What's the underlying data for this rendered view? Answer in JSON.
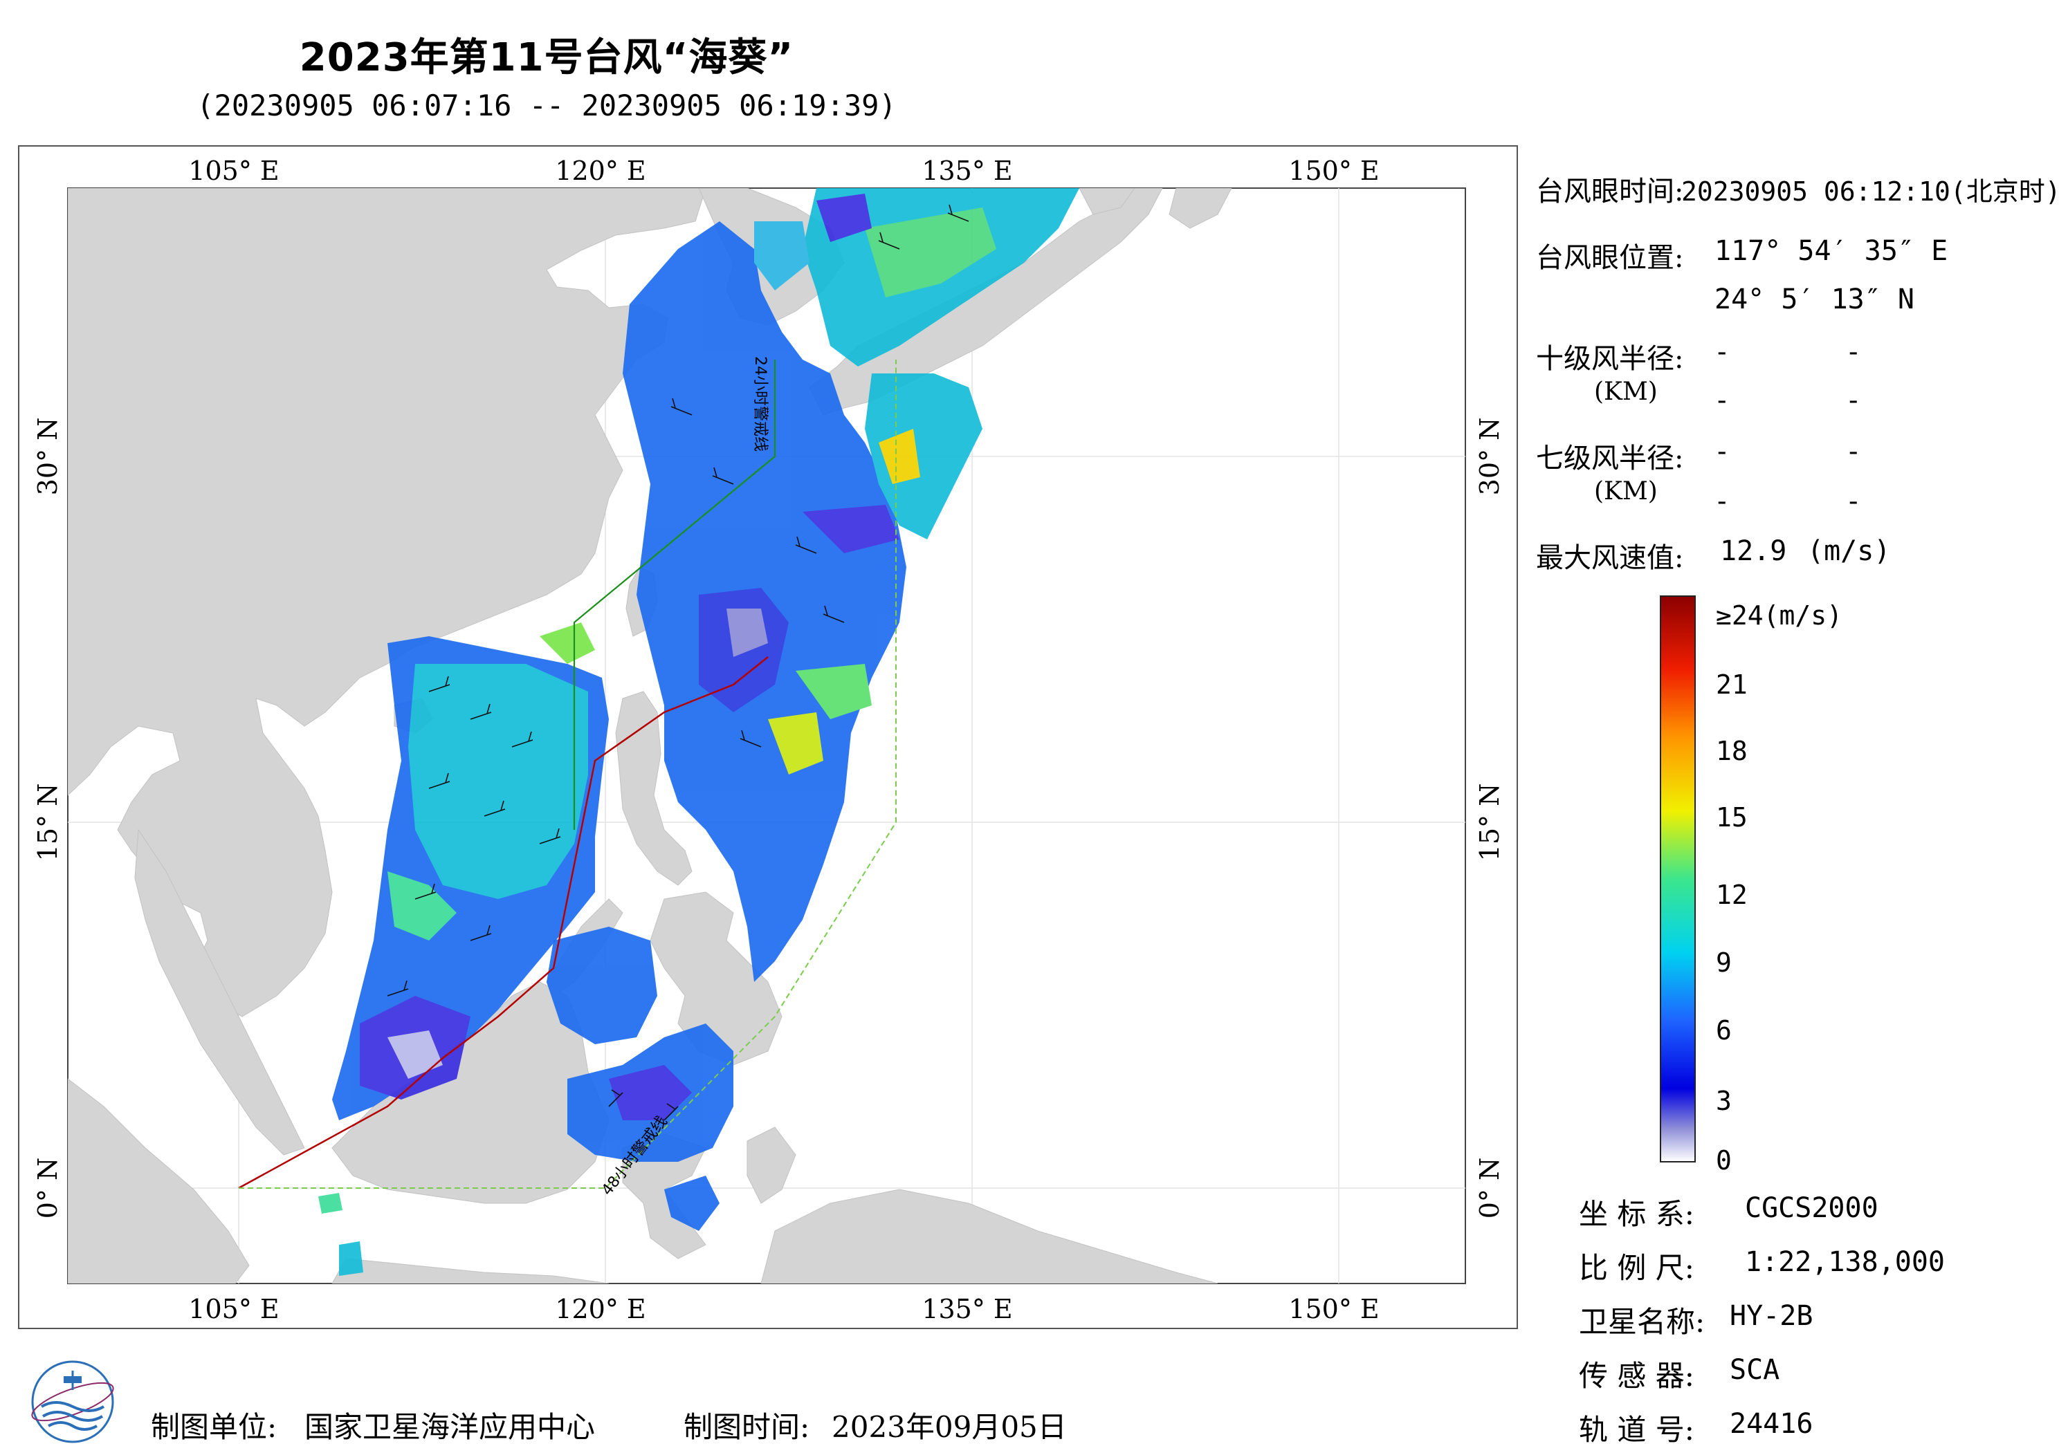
{
  "title": "2023年第11号台风“海葵”",
  "subtitle": "(20230905 06:07:16 -- 20230905 06:19:39)",
  "map": {
    "lon_range": [
      97.7,
      157.0
    ],
    "lat_range": [
      -4.0,
      41.0
    ],
    "lon_ticks": [
      "105° E",
      "120° E",
      "135° E",
      "150° E"
    ],
    "lat_ticks": [
      "0° N",
      "15° N",
      "30° N"
    ],
    "line_label_24h": "24小时警戒线",
    "line_label_48h": "48小时警戒线",
    "colors": {
      "land": "#d4d4d4",
      "ocean": "#ffffff",
      "track": "#b40000",
      "warn_24h": "#1a8f1a",
      "warn_48h": "#7acc4a"
    }
  },
  "info": {
    "eye_time_label": "台风眼时间:",
    "eye_time_value": "20230905 06:12:10(北京时)",
    "eye_pos_label": "台风眼位置:",
    "eye_lon": "117° 54′ 35″ E",
    "eye_lat": "24° 5′ 13″ N",
    "r10_label": "十级风半径:",
    "r7_label": "七级风半径:",
    "km_label": "(KM)",
    "dash": "-",
    "max_wind_label": "最大风速值:",
    "max_wind_value": "12.9",
    "max_wind_unit": "(m/s)"
  },
  "colorbar": {
    "labels": [
      "≥24(m/s)",
      "21",
      "18",
      "15",
      "12",
      "9",
      "6",
      "3",
      "0"
    ]
  },
  "meta": {
    "crs_label": "坐 标 系:",
    "crs_value": "CGCS2000",
    "scale_label": "比 例 尺:",
    "scale_value": "1:22,138,000",
    "sat_label": "卫星名称:",
    "sat_value": "HY-2B",
    "sensor_label": "传 感 器:",
    "sensor_value": "SCA",
    "orbit_label": "轨 道 号:",
    "orbit_value": "24416"
  },
  "footer": {
    "org_label": "制图单位:",
    "org_value": "国家卫星海洋应用中心",
    "date_label": "制图时间:",
    "date_value": "2023年09月05日"
  }
}
